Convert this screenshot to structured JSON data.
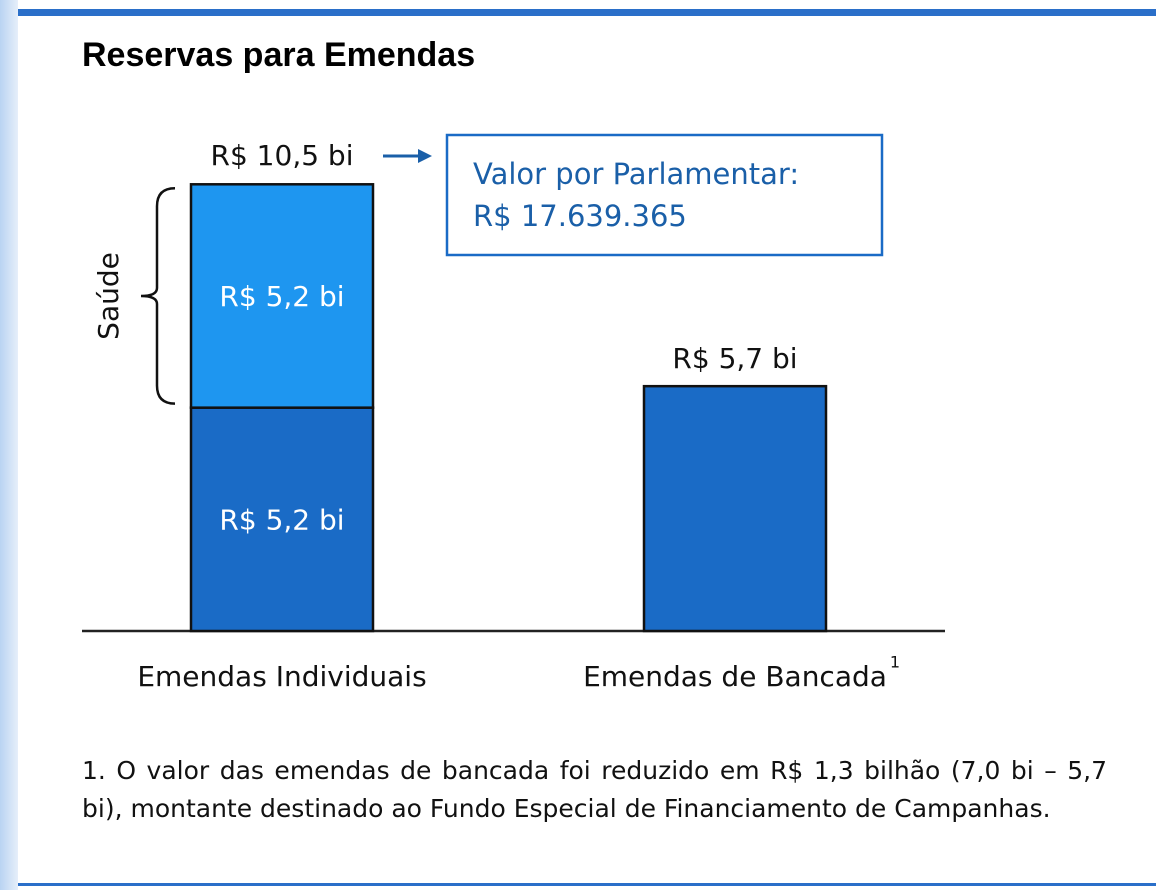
{
  "chart_data": {
    "type": "stacked_bar",
    "title": "Reservas para Emendas",
    "categories": [
      "Emendas Individuais",
      "Emendas de Bancada"
    ],
    "category_notes": [
      null,
      "1"
    ],
    "series": [
      {
        "color": "#1a6bc6",
        "values": [
          5.2,
          5.7
        ],
        "value_labels": [
          "R$ 5,2 bi",
          "R$ 5,7 bi"
        ]
      },
      {
        "name": "Saúde",
        "color": "#1e96f0",
        "values": [
          5.2,
          null
        ],
        "value_labels": [
          "R$ 5,2 bi",
          null
        ]
      }
    ],
    "ylim": [
      0,
      10.5
    ],
    "annotations": {
      "total": "R$ 10,5 bi",
      "box": [
        "Valor por Parlamentar:",
        "R$ 17.639.365"
      ]
    },
    "footnote": "1. O valor das emendas de bancada foi reduzido em R$ 1,3 bilhão (7,0 bi – 5,7 bi), montante destinado ao Fundo Especial de Financiamento de Campanhas."
  }
}
